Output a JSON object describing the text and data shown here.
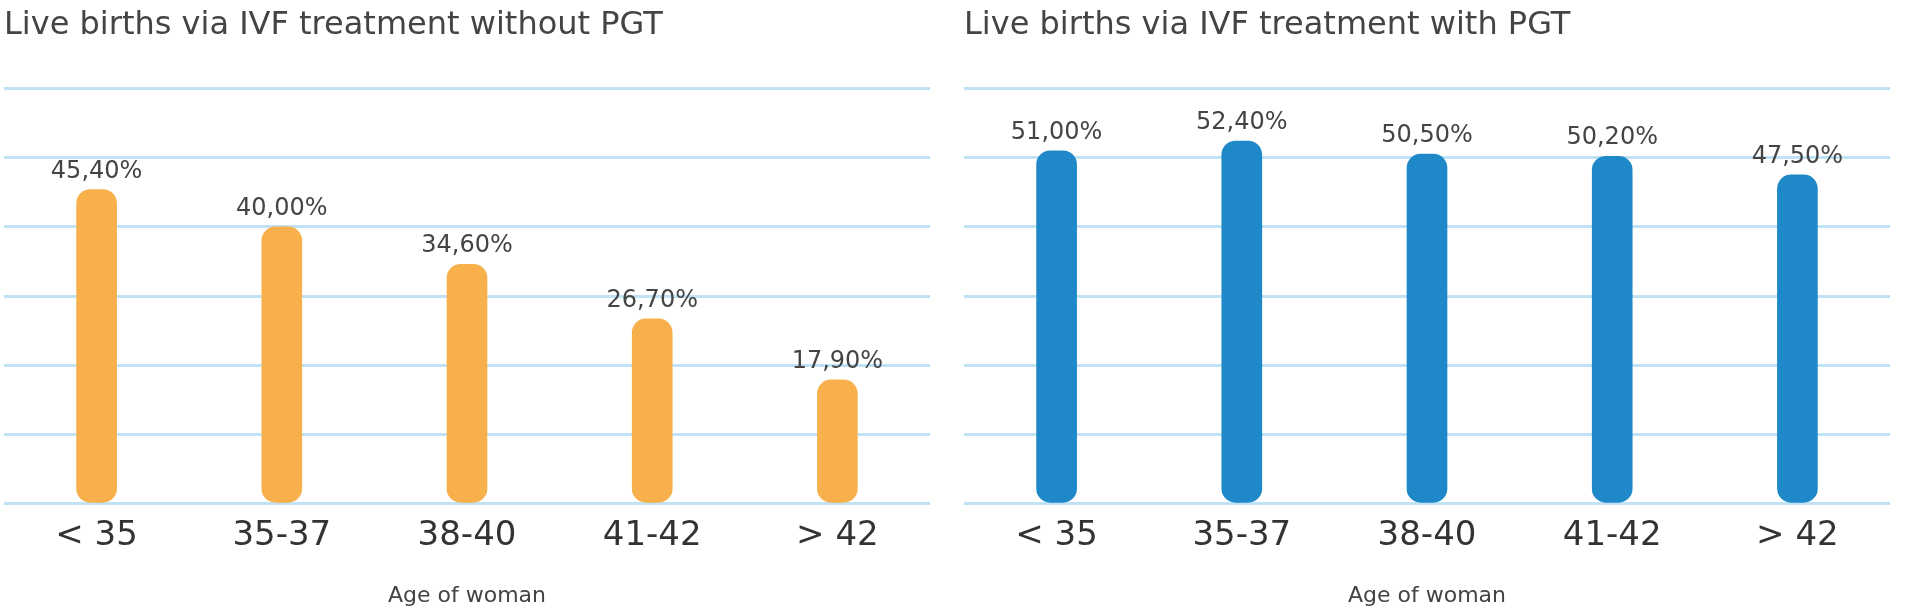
{
  "chart_data": [
    {
      "type": "bar",
      "title": "Live births via IVF treatment without PGT",
      "xlabel": "Age of woman",
      "categories": [
        "< 35",
        "35-37",
        "38-40",
        "41-42",
        "> 42"
      ],
      "values": [
        45.4,
        40.0,
        34.6,
        26.7,
        17.9
      ],
      "value_labels": [
        "45,40%",
        "40,00%",
        "34,60%",
        "26,70%",
        "17,90%"
      ],
      "color": "#f7b04b",
      "ylim": [
        0,
        60
      ],
      "yticks": [
        {
          "value": 0,
          "label": null
        },
        {
          "value": 10,
          "label": null
        },
        {
          "value": 20,
          "label": null
        },
        {
          "value": 30,
          "label": null
        },
        {
          "value": 40,
          "label": null
        },
        {
          "value": 50,
          "label": null
        },
        {
          "value": 60,
          "label": null
        }
      ],
      "grid": "y",
      "tick_labels": "x"
    },
    {
      "type": "bar",
      "title": "Live births via IVF treatment with PGT",
      "xlabel": "Age of woman",
      "categories": [
        "< 35",
        "35-37",
        "38-40",
        "41-42",
        "> 42"
      ],
      "values": [
        51.0,
        52.4,
        50.5,
        50.2,
        47.5
      ],
      "value_labels": [
        "51,00%",
        "52,40%",
        "50,50%",
        "50,20%",
        "47,50%"
      ],
      "color": "#1e88c9",
      "ylim": [
        0,
        60
      ],
      "yticks": [
        {
          "value": 0,
          "label": null
        },
        {
          "value": 10,
          "label": null
        },
        {
          "value": 20,
          "label": null
        },
        {
          "value": 30,
          "label": null
        },
        {
          "value": 40,
          "label": null
        },
        {
          "value": 50,
          "label": null
        },
        {
          "value": 60,
          "label": null
        }
      ],
      "grid": "y",
      "tick_labels": "x"
    }
  ]
}
